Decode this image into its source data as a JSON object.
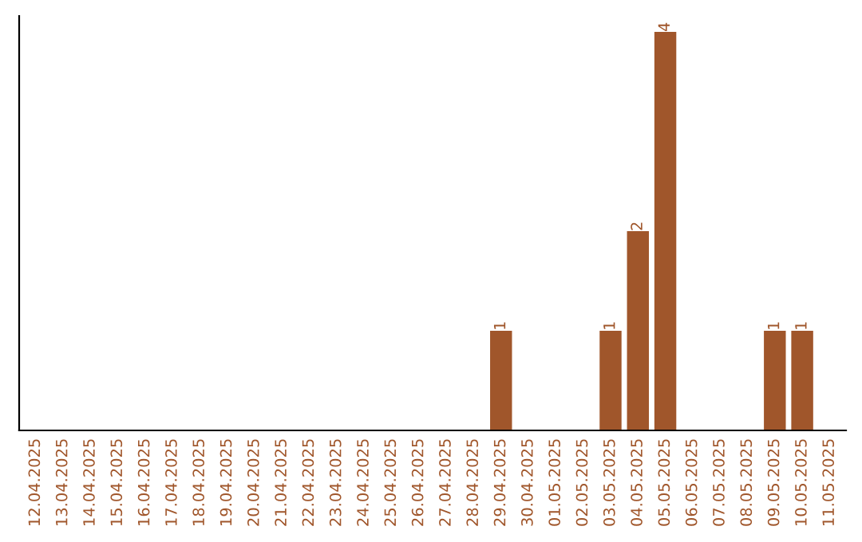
{
  "chart_data": {
    "type": "bar",
    "categories": [
      "12.04.2025",
      "13.04.2025",
      "14.04.2025",
      "15.04.2025",
      "16.04.2025",
      "17.04.2025",
      "18.04.2025",
      "19.04.2025",
      "20.04.2025",
      "21.04.2025",
      "22.04.2025",
      "23.04.2025",
      "24.04.2025",
      "25.04.2025",
      "26.04.2025",
      "27.04.2025",
      "28.04.2025",
      "29.04.2025",
      "30.04.2025",
      "01.05.2025",
      "02.05.2025",
      "03.05.2025",
      "04.05.2025",
      "05.05.2025",
      "06.05.2025",
      "07.05.2025",
      "08.05.2025",
      "09.05.2025",
      "10.05.2025",
      "11.05.2025"
    ],
    "values": [
      null,
      null,
      null,
      null,
      null,
      null,
      null,
      null,
      null,
      null,
      null,
      null,
      null,
      null,
      null,
      null,
      null,
      1,
      null,
      null,
      null,
      1,
      2,
      4,
      null,
      null,
      null,
      1,
      1,
      null
    ],
    "value_labels": [
      null,
      null,
      null,
      null,
      null,
      null,
      null,
      null,
      null,
      null,
      null,
      null,
      null,
      null,
      null,
      null,
      null,
      "1",
      null,
      null,
      null,
      "1",
      "2",
      "4",
      null,
      null,
      null,
      "1",
      "1",
      null
    ],
    "color": "#a0562b",
    "tick_labels": "x",
    "grid": false,
    "legend": false
  }
}
